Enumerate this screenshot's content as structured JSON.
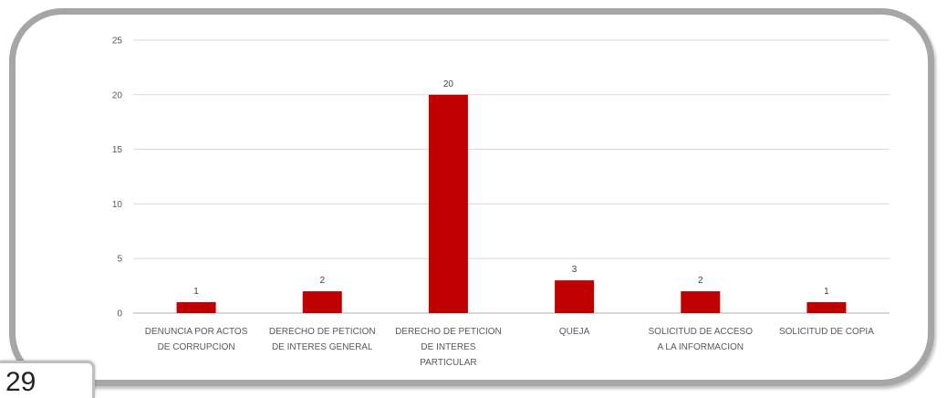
{
  "page": {
    "number": "29"
  },
  "colors": {
    "bar": "#c00000",
    "grid": "#d9d9d9",
    "axis": "#bfbfbf",
    "frame": "#a6a6a6"
  },
  "chart_data": {
    "type": "bar",
    "title": "",
    "xlabel": "",
    "ylabel": "",
    "ylim": [
      0,
      25
    ],
    "yticks": [
      "0",
      "5",
      "10",
      "15",
      "20",
      "25"
    ],
    "grid": true,
    "legend": "none",
    "categories": [
      [
        "DENUNCIA POR ACTOS",
        "DE CORRUPCION"
      ],
      [
        "DERECHO DE PETICION",
        "DE INTERES GENERAL"
      ],
      [
        "DERECHO DE PETICION",
        "DE INTERES",
        "PARTICULAR"
      ],
      [
        "QUEJA"
      ],
      [
        "SOLICITUD DE ACCESO",
        "A LA INFORMACION"
      ],
      [
        "SOLICITUD DE COPIA"
      ]
    ],
    "values": [
      1,
      2,
      20,
      3,
      2,
      1
    ],
    "data_labels": [
      "1",
      "2",
      "20",
      "3",
      "2",
      "1"
    ]
  }
}
